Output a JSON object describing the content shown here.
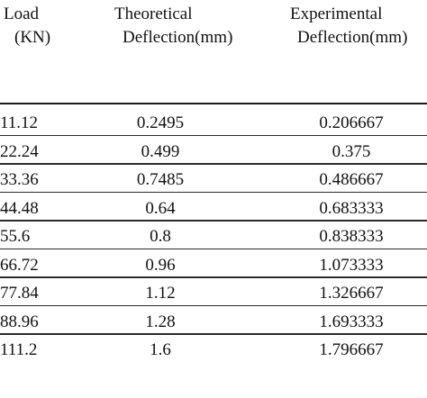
{
  "table": {
    "headers": {
      "load_line1": "Load",
      "load_line2": "(KN)",
      "theoretical_line1": "Theoretical",
      "theoretical_line2": "Deflection(mm)",
      "experimental_line1": "Experimental",
      "experimental_line2": "Deflection(mm)"
    },
    "rows": [
      {
        "load": "11.12",
        "theoretical": "0.2495",
        "experimental": "0.206667"
      },
      {
        "load": "22.24",
        "theoretical": "0.499",
        "experimental": "0.375"
      },
      {
        "load": "33.36",
        "theoretical": "0.7485",
        "experimental": "0.486667"
      },
      {
        "load": "44.48",
        "theoretical": "0.64",
        "experimental": "0.683333"
      },
      {
        "load": "55.6",
        "theoretical": "0.8",
        "experimental": "0.838333"
      },
      {
        "load": "66.72",
        "theoretical": "0.96",
        "experimental": "1.073333"
      },
      {
        "load": "77.84",
        "theoretical": "1.12",
        "experimental": "1.326667"
      },
      {
        "load": "88.96",
        "theoretical": "1.28",
        "experimental": "1.693333"
      },
      {
        "load": "111.2",
        "theoretical": "1.6",
        "experimental": "1.796667"
      }
    ]
  }
}
